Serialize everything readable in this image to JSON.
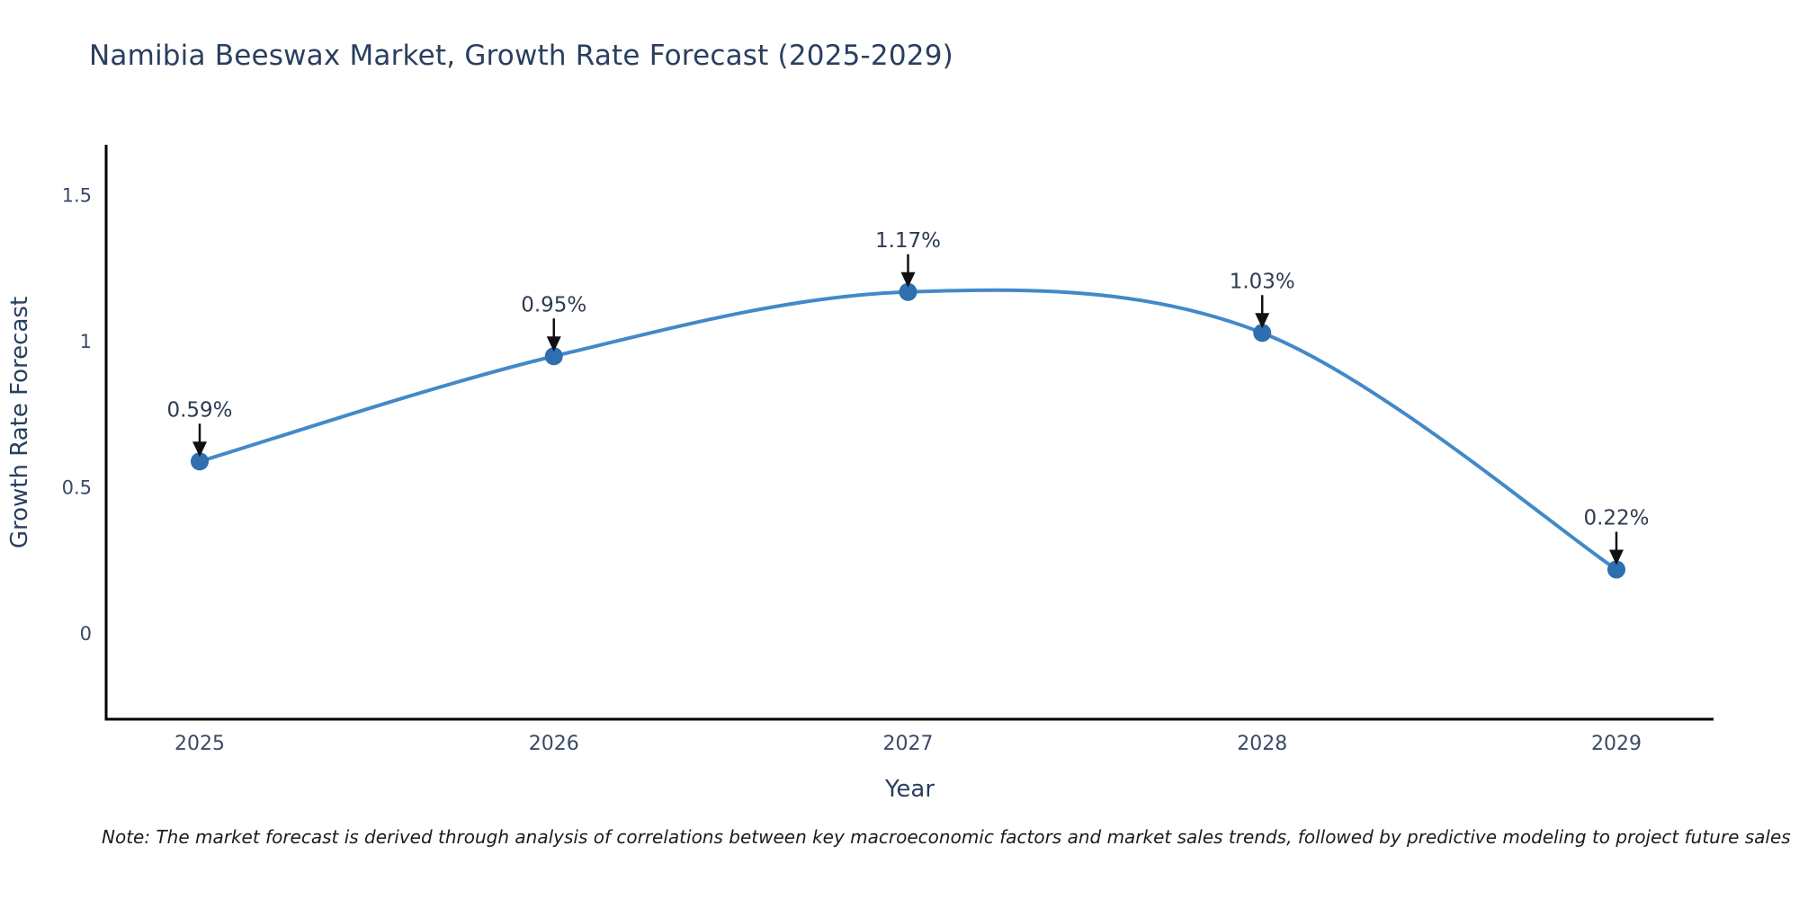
{
  "chart_data": {
    "type": "line",
    "title": "Namibia Beeswax Market, Growth Rate Forecast (2025-2029)",
    "categories": [
      "2025",
      "2026",
      "2027",
      "2028",
      "2029"
    ],
    "values": [
      0.59,
      0.95,
      1.17,
      1.03,
      0.22
    ],
    "point_labels": [
      "0.59%",
      "0.95%",
      "1.17%",
      "1.03%",
      "0.22%"
    ],
    "xlabel": "Year",
    "ylabel": "Growth Rate Forecast",
    "yticks": [
      0,
      0.5,
      1,
      1.5
    ],
    "ytick_labels": [
      "0",
      "0.5",
      "1",
      "1.5"
    ],
    "ylim": [
      -0.3,
      1.67
    ],
    "grid": false,
    "legend_position": "none",
    "line_shape": "spline",
    "colors": {
      "line": "#4389c8",
      "marker": "#2e6fb0",
      "axis": "#000000",
      "title_text": "#2a3f5f",
      "tick_text": "#3b4a66",
      "annotation_text": "#2e3b52",
      "arrow": "#111111"
    },
    "note": "Note: The market forecast is derived through analysis of correlations between key macroeconomic factors and market sales trends, followed by predictive modeling to project future sales"
  }
}
